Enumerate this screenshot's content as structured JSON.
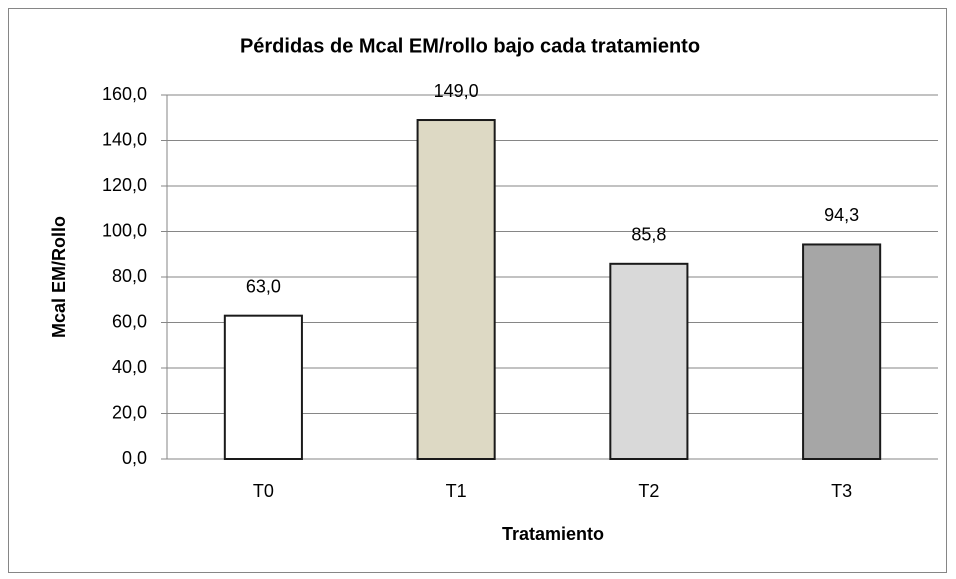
{
  "chart_data": {
    "type": "bar",
    "title": "Pérdidas de Mcal EM/rollo bajo cada tratamiento",
    "x_label": "Tratamiento",
    "y_label": "Mcal EM/Rollo",
    "categories": [
      "T0",
      "T1",
      "T2",
      "T3"
    ],
    "values": [
      63.0,
      149.0,
      85.8,
      94.3
    ],
    "value_labels": [
      "63,0",
      "149,0",
      "85,8",
      "94,3"
    ],
    "colors": [
      "#ffffff",
      "#ddd9c4",
      "#d9d9d9",
      "#a6a6a6"
    ],
    "ylim": [
      0,
      160
    ],
    "yticks": [
      {
        "value": 0,
        "label": "0,0"
      },
      {
        "value": 20,
        "label": "20,0"
      },
      {
        "value": 40,
        "label": "40,0"
      },
      {
        "value": 60,
        "label": "60,0"
      },
      {
        "value": 80,
        "label": "80,0"
      },
      {
        "value": 100,
        "label": "100,0"
      },
      {
        "value": 120,
        "label": "120,0"
      },
      {
        "value": 140,
        "label": "140,0"
      },
      {
        "value": 160,
        "label": "160,0"
      }
    ],
    "grid": true
  }
}
